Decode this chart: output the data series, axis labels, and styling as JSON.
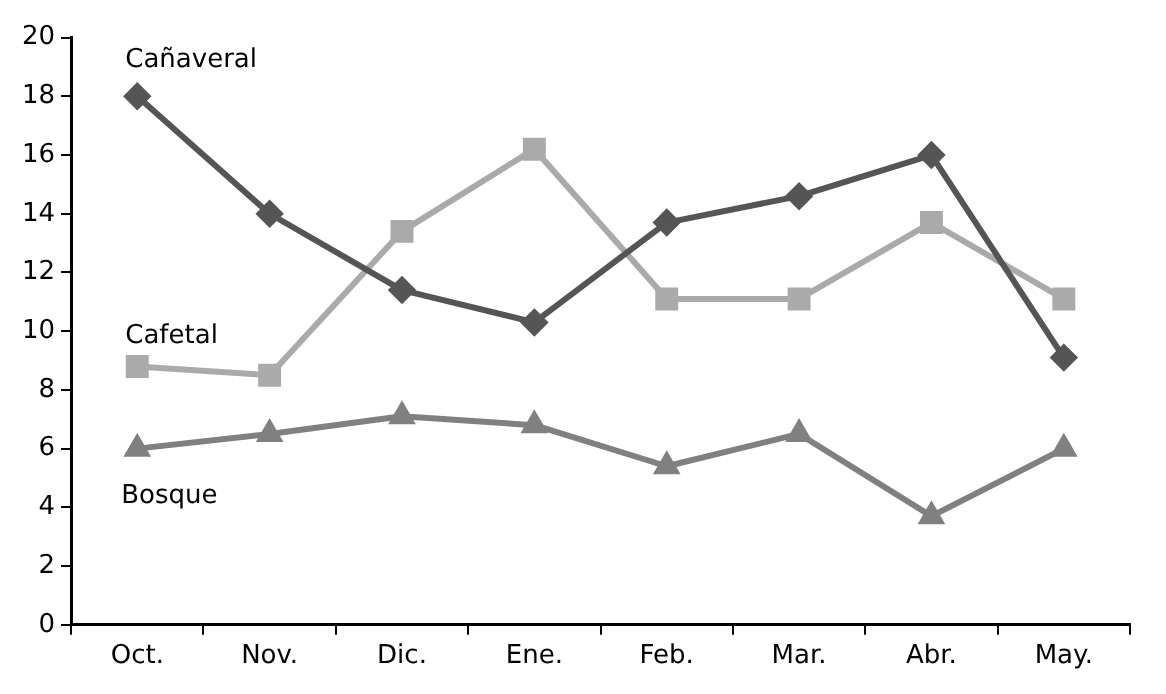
{
  "chart_data": {
    "type": "line",
    "categories": [
      "Oct.",
      "Nov.",
      "Dic.",
      "Ene.",
      "Feb.",
      "Mar.",
      "Abr.",
      "May."
    ],
    "series": [
      {
        "name": "Cañaveral",
        "color": "#555555",
        "marker": "diamond",
        "values": [
          18,
          14,
          11.4,
          10.3,
          13.7,
          14.6,
          16,
          9.1
        ]
      },
      {
        "name": "Cafetal",
        "color": "#aaaaaa",
        "marker": "square",
        "values": [
          8.8,
          8.5,
          13.4,
          16.2,
          11.1,
          11.1,
          13.7,
          11.1
        ]
      },
      {
        "name": "Bosque",
        "color": "#808080",
        "marker": "triangle",
        "values": [
          6,
          6.5,
          7.1,
          6.8,
          5.4,
          6.5,
          3.7,
          6
        ]
      }
    ],
    "ylim": [
      0,
      20
    ],
    "yticks": [
      0,
      2,
      4,
      6,
      8,
      10,
      12,
      14,
      16,
      18,
      20
    ],
    "grid": false,
    "legend": false,
    "line_style": "solid"
  }
}
